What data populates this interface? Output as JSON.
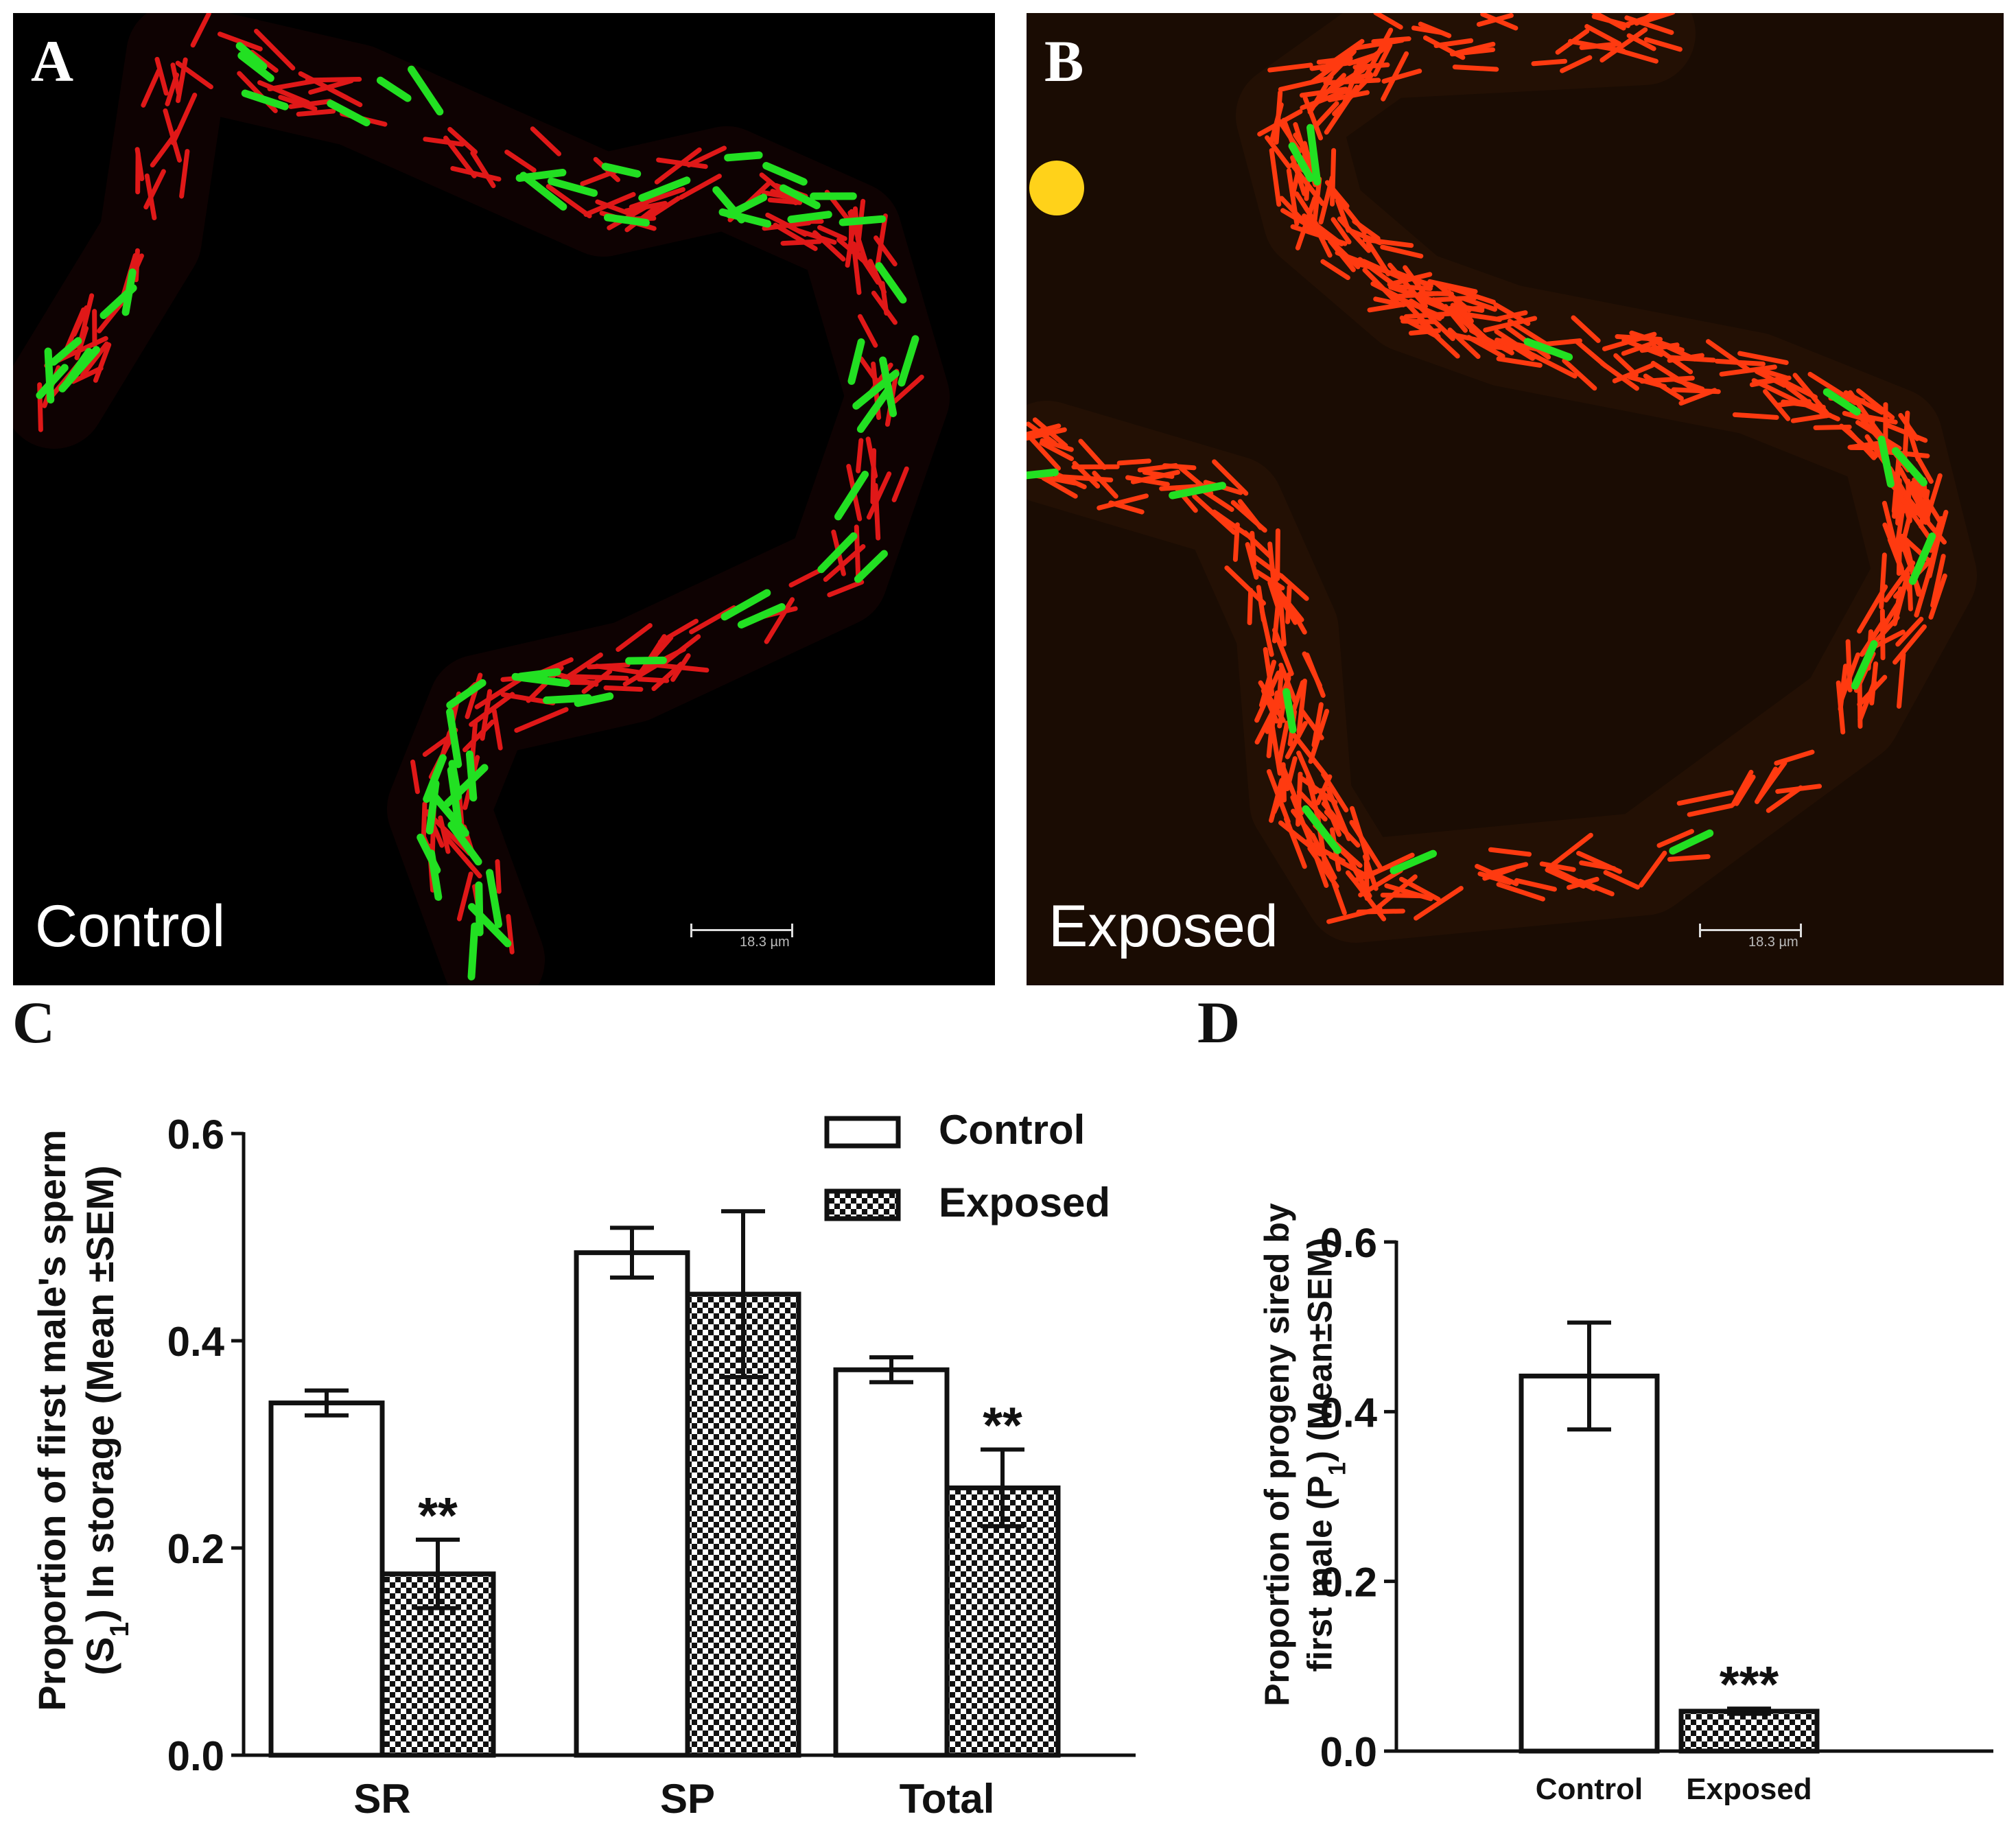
{
  "panels": {
    "a": {
      "letter": "A",
      "condition": "Control",
      "scalebar": "18.3 µm",
      "colors": {
        "background": "#000000",
        "sperm_a": "#e01818",
        "sperm_b": "#22e022"
      }
    },
    "b": {
      "letter": "B",
      "condition": "Exposed",
      "scalebar": "18.3 µm",
      "colors": {
        "background": "#1a0c03",
        "sperm_a": "#ff3a10",
        "sperm_b": "#22e022",
        "blob": "#ffd21a"
      }
    },
    "c": {
      "letter": "C"
    },
    "d": {
      "letter": "D"
    }
  },
  "chart_data": [
    {
      "type": "bar",
      "panel": "C",
      "categories": [
        "SR",
        "SP",
        "Total"
      ],
      "series": [
        {
          "name": "Control",
          "values": [
            0.34,
            0.485,
            0.372
          ],
          "sem": [
            0.012,
            0.024,
            0.012
          ],
          "fill": "white"
        },
        {
          "name": "Exposed",
          "values": [
            0.175,
            0.445,
            0.258
          ],
          "sem": [
            0.033,
            0.08,
            0.037
          ],
          "fill": "checker"
        }
      ],
      "significance": [
        "**",
        "",
        "**"
      ],
      "ylabel_line1": "Proportion of first male's sperm",
      "ylabel_line2_pre": "(S",
      "ylabel_line2_sub": "1",
      "ylabel_line2_post": ") In storage (Mean ±SEM)",
      "ylim": [
        0.0,
        0.6
      ],
      "yticks": [
        "0.0",
        "0.2",
        "0.4",
        "0.6"
      ],
      "legend": "top-right",
      "grid": false
    },
    {
      "type": "bar",
      "panel": "D",
      "categories": [
        "Control",
        "Exposed"
      ],
      "values": [
        0.442,
        0.047
      ],
      "sem": [
        0.063,
        0.003
      ],
      "fills": [
        "white",
        "checker"
      ],
      "significance": [
        "",
        "***"
      ],
      "ylabel_line1": "Proportion of progeny sired by",
      "ylabel_line2_pre": "first male (P",
      "ylabel_line2_sub": "1",
      "ylabel_line2_post": ") (Mean±SEM)",
      "ylim": [
        0.0,
        0.6
      ],
      "yticks": [
        "0.0",
        "0.2",
        "0.4",
        "0.6"
      ],
      "grid": false
    }
  ]
}
